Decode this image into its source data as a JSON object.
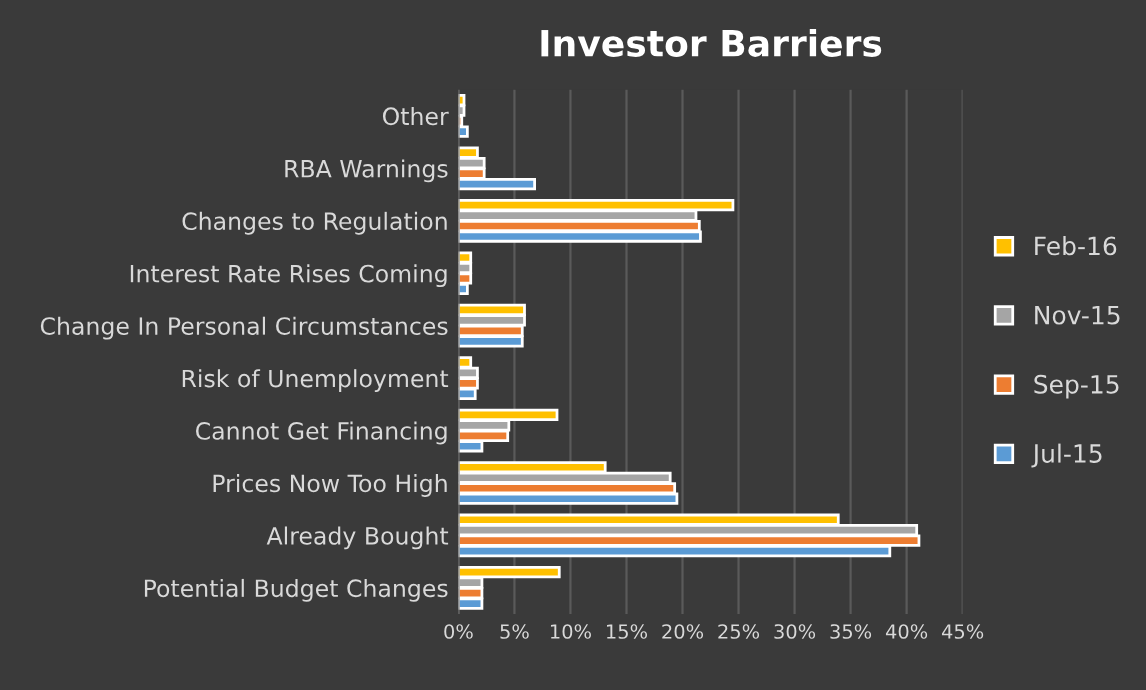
{
  "chart_data": {
    "type": "bar",
    "orientation": "horizontal",
    "title": "Investor Barriers",
    "categories": [
      "Other",
      "RBA Warnings",
      "Changes to Regulation",
      "Interest Rate Rises Coming",
      "Change In Personal Circumstances",
      "Risk of Unemployment",
      "Cannot Get Financing",
      "Prices Now Too High",
      "Already Bought",
      "Potential Budget Changes"
    ],
    "series": [
      {
        "name": "Feb-16",
        "color": "#ffc000",
        "values": [
          0.5,
          1.7,
          24.5,
          1.1,
          5.9,
          1.1,
          8.8,
          13.1,
          33.9,
          9.0
        ]
      },
      {
        "name": "Nov-15",
        "color": "#a5a5a5",
        "values": [
          0.5,
          2.3,
          21.2,
          1.1,
          5.9,
          1.7,
          4.5,
          18.9,
          40.9,
          2.1
        ]
      },
      {
        "name": "Sep-15",
        "color": "#ed7d31",
        "values": [
          0.3,
          2.3,
          21.5,
          1.1,
          5.7,
          1.7,
          4.4,
          19.3,
          41.1,
          2.1
        ]
      },
      {
        "name": "Jul-15",
        "color": "#5b9bd5",
        "values": [
          0.8,
          6.8,
          21.6,
          0.8,
          5.7,
          1.5,
          2.1,
          19.5,
          38.5,
          2.1
        ]
      }
    ],
    "xlim": [
      0,
      45
    ],
    "xticks": [
      {
        "value": 0,
        "label": "0%"
      },
      {
        "value": 5,
        "label": "5%"
      },
      {
        "value": 10,
        "label": "10%"
      },
      {
        "value": 15,
        "label": "15%"
      },
      {
        "value": 20,
        "label": "20%"
      },
      {
        "value": 25,
        "label": "25%"
      },
      {
        "value": 30,
        "label": "30%"
      },
      {
        "value": 35,
        "label": "35%"
      },
      {
        "value": 40,
        "label": "40%"
      },
      {
        "value": 45,
        "label": "45%"
      }
    ],
    "grid": "x",
    "legend": "right"
  }
}
